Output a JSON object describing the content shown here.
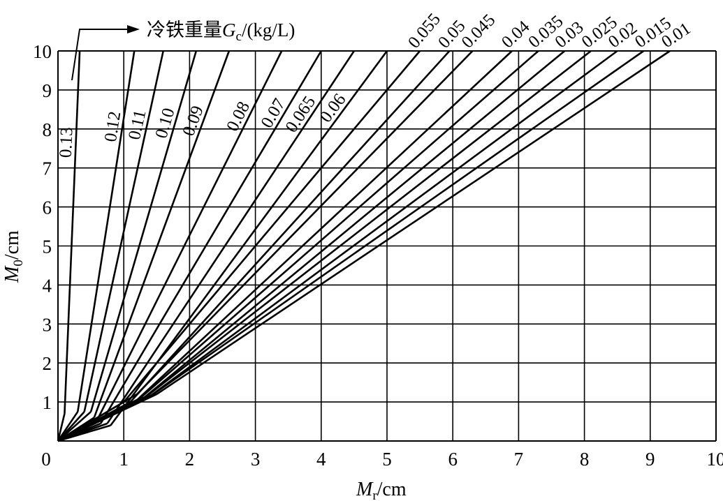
{
  "chart_data": {
    "type": "line",
    "title": "",
    "xlabel": {
      "symbol": "M",
      "sub": "r",
      "unit": "/cm"
    },
    "ylabel": {
      "symbol": "M",
      "sub": "0",
      "unit": "/cm"
    },
    "xlim": [
      0,
      10
    ],
    "ylim": [
      0,
      10
    ],
    "xticks": [
      "0",
      "1",
      "2",
      "3",
      "4",
      "5",
      "6",
      "7",
      "8",
      "9",
      "10"
    ],
    "yticks": [
      "1",
      "2",
      "3",
      "4",
      "5",
      "6",
      "7",
      "8",
      "9",
      "10"
    ],
    "grid": true,
    "legend": {
      "text": "冷铁重量",
      "symbol": "G",
      "sub": "c",
      "unit": "/(kg/L)"
    },
    "series": [
      {
        "name": "0.13",
        "x": [
          0.1,
          0.33
        ],
        "y": [
          0.7,
          10
        ]
      },
      {
        "name": "0.12",
        "x": [
          0.3,
          1.16
        ],
        "y": [
          0.75,
          10
        ]
      },
      {
        "name": "0.11",
        "x": [
          0.4,
          1.6
        ],
        "y": [
          0.75,
          10
        ]
      },
      {
        "name": "0.10",
        "x": [
          0.5,
          2.1
        ],
        "y": [
          0.75,
          10
        ]
      },
      {
        "name": "0.09",
        "x": [
          0.55,
          2.6
        ],
        "y": [
          0.6,
          10
        ]
      },
      {
        "name": "0.08",
        "x": [
          0.6,
          3.4
        ],
        "y": [
          0.55,
          10
        ]
      },
      {
        "name": "0.07",
        "x": [
          0.65,
          4.0
        ],
        "y": [
          0.45,
          10
        ]
      },
      {
        "name": "0.065",
        "x": [
          0.75,
          4.5
        ],
        "y": [
          0.45,
          10
        ]
      },
      {
        "name": "0.06",
        "x": [
          0.8,
          5.0
        ],
        "y": [
          0.4,
          10
        ]
      },
      {
        "name": "0.055",
        "x": [
          1.0,
          5.5
        ],
        "y": [
          1.0,
          10
        ]
      },
      {
        "name": "0.05",
        "x": [
          1.1,
          5.95
        ],
        "y": [
          1.0,
          10
        ]
      },
      {
        "name": "0.045",
        "x": [
          1.2,
          6.3
        ],
        "y": [
          1.2,
          10
        ]
      },
      {
        "name": "0.04",
        "x": [
          1.2,
          6.9
        ],
        "y": [
          1.05,
          10
        ]
      },
      {
        "name": "0.035",
        "x": [
          1.25,
          7.3
        ],
        "y": [
          1.1,
          10
        ]
      },
      {
        "name": "0.03",
        "x": [
          1.3,
          7.7
        ],
        "y": [
          1.1,
          10
        ]
      },
      {
        "name": "0.025",
        "x": [
          1.35,
          8.1
        ],
        "y": [
          1.15,
          10
        ]
      },
      {
        "name": "0.02",
        "x": [
          1.4,
          8.5
        ],
        "y": [
          1.15,
          10
        ]
      },
      {
        "name": "0.015",
        "x": [
          1.45,
          8.9
        ],
        "y": [
          1.2,
          10
        ]
      },
      {
        "name": "0.01",
        "x": [
          1.5,
          9.3
        ],
        "y": [
          1.2,
          10
        ]
      }
    ]
  }
}
